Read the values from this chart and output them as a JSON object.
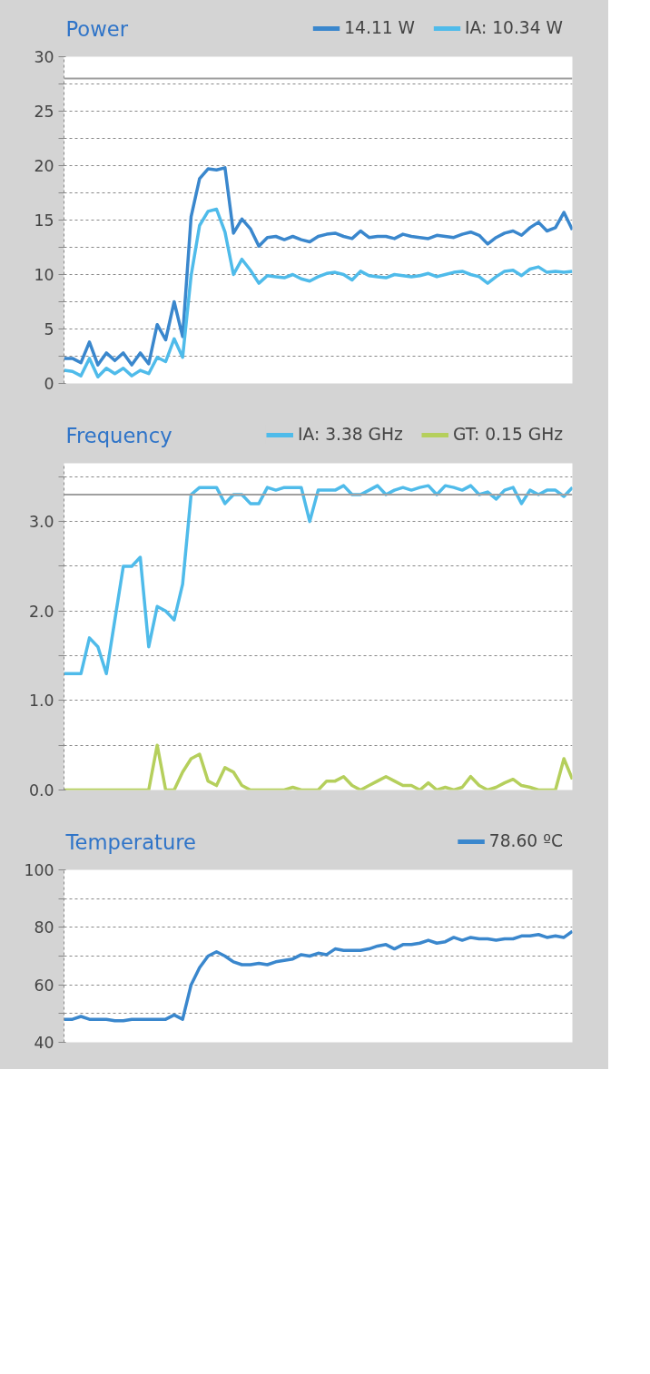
{
  "chart_data": [
    {
      "type": "line",
      "title": "Power",
      "categories": [
        null,
        null,
        null,
        null,
        null,
        null,
        null,
        null,
        null,
        null,
        null,
        null,
        null,
        null,
        null,
        null,
        null,
        null,
        null,
        null,
        null,
        null,
        null,
        null,
        null,
        null,
        null,
        null,
        null,
        null,
        null,
        null,
        null,
        null,
        null,
        null,
        null,
        null,
        null,
        null,
        null,
        null,
        null,
        null,
        null,
        null,
        null,
        null,
        null,
        null,
        null,
        null,
        null,
        null,
        null,
        null,
        null,
        null,
        null,
        null,
        null
      ],
      "series": [
        {
          "name": "14.11 W",
          "color": "#3a87cd",
          "values": [
            2.3,
            2.3,
            1.9,
            3.8,
            1.7,
            2.8,
            2.1,
            2.8,
            1.7,
            2.8,
            1.8,
            5.4,
            4.0,
            7.5,
            4.3,
            15.3,
            18.8,
            19.7,
            19.6,
            19.8,
            13.8,
            15.1,
            14.2,
            12.6,
            13.4,
            13.5,
            13.2,
            13.5,
            13.2,
            13.0,
            13.5,
            13.7,
            13.8,
            13.5,
            13.3,
            14.0,
            13.4,
            13.5,
            13.5,
            13.3,
            13.7,
            13.5,
            13.4,
            13.3,
            13.6,
            13.5,
            13.4,
            13.7,
            13.9,
            13.6,
            12.8,
            13.4,
            13.8,
            14.0,
            13.6,
            14.3,
            14.8,
            14.0,
            14.3,
            15.7,
            14.1
          ]
        },
        {
          "name": "IA: 10.34 W",
          "color": "#4fbbea",
          "values": [
            1.2,
            1.1,
            0.7,
            2.3,
            0.6,
            1.4,
            0.9,
            1.4,
            0.7,
            1.2,
            0.9,
            2.4,
            2.0,
            4.1,
            2.4,
            9.9,
            14.5,
            15.8,
            16.0,
            13.9,
            10.0,
            11.4,
            10.4,
            9.2,
            9.9,
            9.8,
            9.7,
            10.0,
            9.6,
            9.4,
            9.8,
            10.1,
            10.2,
            10.0,
            9.5,
            10.3,
            9.9,
            9.8,
            9.7,
            10.0,
            9.9,
            9.8,
            9.9,
            10.1,
            9.8,
            10.0,
            10.2,
            10.3,
            10.0,
            9.8,
            9.2,
            9.8,
            10.3,
            10.4,
            9.9,
            10.5,
            10.7,
            10.2,
            10.3,
            10.2,
            10.3
          ]
        }
      ],
      "ylim": [
        0,
        30
      ],
      "yticks": [
        0,
        {
          "value": 2.5,
          "label": null
        },
        5,
        {
          "value": 7.5,
          "label": null
        },
        10,
        {
          "value": 12.5,
          "label": null
        },
        15,
        {
          "value": 17.5,
          "label": null
        },
        20,
        {
          "value": 22.5,
          "label": null
        },
        25,
        {
          "value": 27.5,
          "label": null
        },
        30
      ],
      "ref_lines": [
        {
          "axis": "y",
          "value": 28,
          "color": "#a0a0a0"
        }
      ],
      "grid": "y",
      "legend": "top right",
      "tick_labels": "y"
    },
    {
      "type": "line",
      "title": "Frequency",
      "categories": [
        null,
        null,
        null,
        null,
        null,
        null,
        null,
        null,
        null,
        null,
        null,
        null,
        null,
        null,
        null,
        null,
        null,
        null,
        null,
        null,
        null,
        null,
        null,
        null,
        null,
        null,
        null,
        null,
        null,
        null,
        null,
        null,
        null,
        null,
        null,
        null,
        null,
        null,
        null,
        null,
        null,
        null,
        null,
        null,
        null,
        null,
        null,
        null,
        null,
        null,
        null,
        null,
        null,
        null,
        null,
        null,
        null,
        null,
        null,
        null,
        null
      ],
      "series": [
        {
          "name": "IA: 3.38 GHz",
          "color": "#4fbbea",
          "values": [
            1.3,
            1.3,
            1.3,
            1.7,
            1.6,
            1.3,
            1.9,
            2.5,
            2.5,
            2.6,
            1.6,
            2.05,
            2.0,
            1.9,
            2.3,
            3.3,
            3.38,
            3.38,
            3.38,
            3.2,
            3.3,
            3.3,
            3.2,
            3.2,
            3.38,
            3.35,
            3.38,
            3.38,
            3.38,
            3.0,
            3.35,
            3.35,
            3.35,
            3.4,
            3.3,
            3.3,
            3.35,
            3.4,
            3.3,
            3.35,
            3.38,
            3.35,
            3.38,
            3.4,
            3.3,
            3.4,
            3.38,
            3.35,
            3.4,
            3.3,
            3.33,
            3.25,
            3.35,
            3.38,
            3.2,
            3.35,
            3.3,
            3.35,
            3.35,
            3.28,
            3.38
          ]
        },
        {
          "name": "GT: 0.15 GHz",
          "color": "#b5cf5c",
          "values": [
            0,
            0,
            0,
            0,
            0,
            0,
            0,
            0,
            0,
            0,
            0,
            0.5,
            0,
            0,
            0.2,
            0.35,
            0.4,
            0.1,
            0.05,
            0.25,
            0.2,
            0.05,
            0,
            0,
            0,
            0,
            0,
            0.03,
            0,
            0,
            0,
            0.1,
            0.1,
            0.15,
            0.05,
            0,
            0.05,
            0.1,
            0.15,
            0.1,
            0.05,
            0.05,
            0,
            0.08,
            0,
            0.03,
            0,
            0.03,
            0.15,
            0.05,
            0,
            0.03,
            0.08,
            0.12,
            0.05,
            0.03,
            0,
            0,
            0,
            0.35,
            0.12
          ]
        }
      ],
      "ylim": [
        0,
        3.65
      ],
      "yticks": [
        {
          "value": 0,
          "label": "0.0"
        },
        {
          "value": 0.5,
          "label": null
        },
        {
          "value": 1,
          "label": "1.0"
        },
        {
          "value": 1.5,
          "label": null
        },
        {
          "value": 2,
          "label": "2.0"
        },
        {
          "value": 2.5,
          "label": null
        },
        {
          "value": 3,
          "label": "3.0"
        },
        {
          "value": 3.5,
          "label": null
        }
      ],
      "ref_lines": [
        {
          "axis": "y",
          "value": 3.3,
          "color": "#a0a0a0"
        }
      ],
      "grid": "y",
      "legend": "top right",
      "tick_labels": "y"
    },
    {
      "type": "line",
      "title": "Temperature",
      "categories": [
        null,
        null,
        null,
        null,
        null,
        null,
        null,
        null,
        null,
        null,
        null,
        null,
        null,
        null,
        null,
        null,
        null,
        null,
        null,
        null,
        null,
        null,
        null,
        null,
        null,
        null,
        null,
        null,
        null,
        null,
        null,
        null,
        null,
        null,
        null,
        null,
        null,
        null,
        null,
        null,
        null,
        null,
        null,
        null,
        null,
        null,
        null,
        null,
        null,
        null,
        null,
        null,
        null,
        null,
        null,
        null,
        null,
        null,
        null,
        null,
        null
      ],
      "series": [
        {
          "name": "78.60 ºC",
          "color": "#3a87cd",
          "values": [
            48,
            48,
            49,
            48,
            48,
            48,
            47.5,
            47.5,
            48,
            48,
            48,
            48,
            48,
            49.5,
            48,
            60,
            66,
            70,
            71.5,
            70,
            68,
            67,
            67,
            67.5,
            67,
            68,
            68.5,
            69,
            70.5,
            70,
            71,
            70.5,
            72.5,
            72,
            72,
            72,
            72.5,
            73.5,
            74,
            72.5,
            74,
            74,
            74.5,
            75.5,
            74.5,
            75,
            76.5,
            75.5,
            76.5,
            76,
            76,
            75.5,
            76,
            76,
            77,
            77,
            77.5,
            76.5,
            77,
            76.5,
            78.6
          ]
        }
      ],
      "ylim": [
        40,
        100
      ],
      "yticks": [
        40,
        {
          "value": 50,
          "label": null
        },
        60,
        {
          "value": 70,
          "label": null
        },
        80,
        {
          "value": 90,
          "label": null
        },
        100
      ],
      "grid": "y",
      "legend": "top right",
      "tick_labels": "y"
    }
  ]
}
